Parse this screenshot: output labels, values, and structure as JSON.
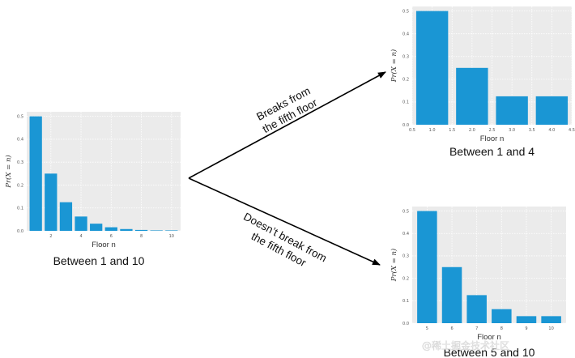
{
  "branches": {
    "top": {
      "line1": "Breaks from",
      "line2": "the fifth floor"
    },
    "bottom": {
      "line1": "Doesn’t break from",
      "line2": "the fifth floor"
    }
  },
  "watermark": "@稀土掘金技术社区",
  "chart_data": [
    {
      "id": "left",
      "type": "bar",
      "caption": "Between 1 and 10",
      "xlabel": "Floor n",
      "ylabel": "Pr(X = n)",
      "x": [
        1,
        2,
        3,
        4,
        5,
        6,
        7,
        8,
        9,
        10
      ],
      "values": [
        0.5,
        0.25,
        0.125,
        0.0625,
        0.03125,
        0.015625,
        0.0078125,
        0.00390625,
        0.001953125,
        0.001953125
      ],
      "xlim": [
        0.4,
        10.6
      ],
      "ylim": [
        0,
        0.52
      ],
      "xticks": [
        2,
        4,
        6,
        8,
        10
      ],
      "xtick_labels": [
        "2",
        "4",
        "6",
        "8",
        "10"
      ],
      "yticks": [
        0,
        0.1,
        0.2,
        0.3,
        0.4,
        0.5
      ],
      "ytick_labels": [
        "0.0",
        "0.1",
        "0.2",
        "0.3",
        "0.4",
        "0.5"
      ],
      "grid": true,
      "color": "#1a96d4"
    },
    {
      "id": "top-right",
      "type": "bar",
      "caption": "Between 1 and 4",
      "xlabel": "Floor n",
      "ylabel": "Pr(X = n)",
      "x": [
        1,
        2,
        3,
        4
      ],
      "values": [
        0.5,
        0.25,
        0.125,
        0.125
      ],
      "xlim": [
        0.5,
        4.5
      ],
      "ylim": [
        0,
        0.52
      ],
      "xticks": [
        0.5,
        1.0,
        1.5,
        2.0,
        2.5,
        3.0,
        3.5,
        4.0,
        4.5
      ],
      "xtick_labels": [
        "0.5",
        "1.0",
        "1.5",
        "2.0",
        "2.5",
        "3.0",
        "3.5",
        "4.0",
        "4.5"
      ],
      "yticks": [
        0,
        0.1,
        0.2,
        0.3,
        0.4,
        0.5
      ],
      "ytick_labels": [
        "0.0",
        "0.1",
        "0.2",
        "0.3",
        "0.4",
        "0.5"
      ],
      "grid": true,
      "color": "#1a96d4"
    },
    {
      "id": "bottom-right",
      "type": "bar",
      "caption": "Between 5 and 10",
      "xlabel": "Floor n",
      "ylabel": "Pr(X = n)",
      "x": [
        5,
        6,
        7,
        8,
        9,
        10
      ],
      "values": [
        0.5,
        0.25,
        0.125,
        0.0625,
        0.03125,
        0.03125
      ],
      "xlim": [
        4.4,
        10.6
      ],
      "ylim": [
        0,
        0.52
      ],
      "xticks": [
        5,
        6,
        7,
        8,
        9,
        10
      ],
      "xtick_labels": [
        "5",
        "6",
        "7",
        "8",
        "9",
        "10"
      ],
      "yticks": [
        0,
        0.1,
        0.2,
        0.3,
        0.4,
        0.5
      ],
      "ytick_labels": [
        "0.0",
        "0.1",
        "0.2",
        "0.3",
        "0.4",
        "0.5"
      ],
      "grid": true,
      "color": "#1a96d4"
    }
  ]
}
